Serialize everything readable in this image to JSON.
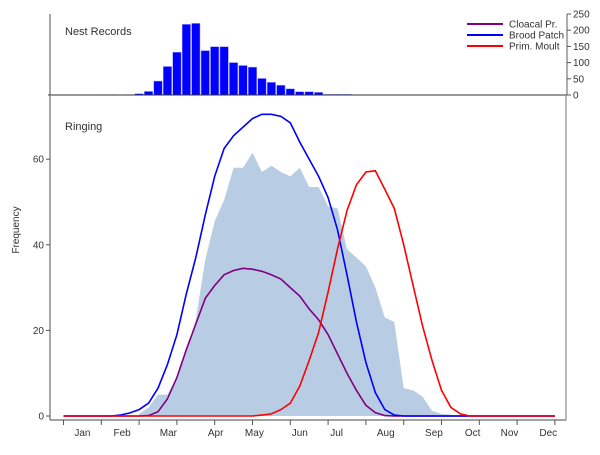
{
  "chart_data": [
    {
      "type": "bar",
      "panel_label": "Nest Records",
      "x_unit": "week of year",
      "x": [
        4,
        5,
        7,
        8,
        9,
        10,
        11,
        12,
        13,
        14,
        15,
        16,
        17,
        18,
        19,
        20,
        21,
        22,
        23,
        24,
        25,
        26,
        27,
        28,
        29,
        30
      ],
      "values": [
        1,
        1,
        1,
        4,
        11,
        43,
        88,
        132,
        218,
        221,
        137,
        149,
        149,
        100,
        91,
        86,
        51,
        39,
        30,
        19,
        10,
        10,
        8,
        2,
        2,
        2
      ],
      "ylim": [
        0,
        250
      ],
      "yticks": [
        0,
        50,
        100,
        150,
        200,
        250
      ],
      "y_axis_side": "right",
      "color": "#0000ff"
    },
    {
      "type": "area+line",
      "panel_label": "Ringing",
      "ylabel": "Frequency",
      "ylim": [
        0,
        75
      ],
      "yticks": [
        0,
        20,
        40,
        60
      ],
      "xlim": [
        -0.5,
        53
      ],
      "x_unit": "week of year",
      "xticks_weeks": [
        0,
        4,
        8,
        12,
        16,
        20,
        24,
        28,
        32,
        36,
        40,
        44,
        48,
        52
      ],
      "month_labels": [
        {
          "label": "Jan",
          "week": 2.0
        },
        {
          "label": "Feb",
          "week": 6.2
        },
        {
          "label": "Mar",
          "week": 11.1
        },
        {
          "label": "Apr",
          "week": 16.1
        },
        {
          "label": "May",
          "week": 20.2
        },
        {
          "label": "Jun",
          "week": 25.0
        },
        {
          "label": "Jul",
          "week": 28.9
        },
        {
          "label": "Aug",
          "week": 34.1
        },
        {
          "label": "Sep",
          "week": 39.2
        },
        {
          "label": "Oct",
          "week": 43.3
        },
        {
          "label": "Nov",
          "week": 47.2
        },
        {
          "label": "Dec",
          "week": 51.3
        }
      ],
      "area": {
        "color": "#b8cce4",
        "x": [
          8,
          9,
          10,
          11,
          12,
          13,
          14,
          15,
          16,
          17,
          18,
          19,
          20,
          21,
          22,
          23,
          24,
          25,
          26,
          27,
          28,
          29,
          30,
          31,
          32,
          33,
          34,
          35,
          36,
          37,
          38,
          39,
          40,
          41,
          42
        ],
        "values": [
          0.5,
          2,
          5,
          5,
          9,
          15,
          22.5,
          36.5,
          45.5,
          50.5,
          58,
          58,
          61.5,
          57,
          58.5,
          57,
          56,
          58,
          53.5,
          53.5,
          49,
          48.5,
          39,
          37,
          35,
          30,
          23,
          22,
          6.5,
          6,
          4.5,
          1.2,
          0.5,
          0.3,
          0
        ]
      },
      "legend_position": "top-right",
      "series": [
        {
          "name": "Cloacal Pr.",
          "color": "#800080",
          "start_week": 0,
          "values": [
            0,
            0,
            0,
            0,
            0,
            0,
            0,
            0,
            0,
            0.1,
            1,
            4,
            9,
            15.5,
            21.5,
            27.5,
            30.5,
            33,
            34,
            34.5,
            34.3,
            33.8,
            33,
            32,
            30,
            28,
            25,
            22.5,
            19,
            14.5,
            10,
            6,
            2.5,
            0.8,
            0.1,
            0,
            0,
            0,
            0,
            0,
            0,
            0,
            0,
            0,
            0,
            0,
            0,
            0,
            0,
            0,
            0,
            0,
            0
          ]
        },
        {
          "name": "Brood Patch",
          "color": "#0000ff",
          "start_week": 0,
          "values": [
            0,
            0,
            0,
            0,
            0,
            0,
            0.2,
            0.7,
            1.5,
            3,
            6.5,
            12,
            19,
            28.5,
            37,
            47,
            56,
            62.5,
            65.5,
            67.5,
            69.5,
            70.5,
            70.5,
            70,
            68.5,
            64,
            60,
            56,
            51,
            43.5,
            33,
            22,
            12.5,
            5.5,
            1.5,
            0.2,
            0,
            0,
            0,
            0,
            0,
            0,
            0,
            0,
            0,
            0,
            0,
            0,
            0,
            0,
            0,
            0,
            0
          ]
        },
        {
          "name": "Prim. Moult",
          "color": "#ff0000",
          "start_week": 0,
          "values": [
            0,
            0,
            0,
            0,
            0,
            0,
            0,
            0,
            0,
            0,
            0,
            0,
            0,
            0,
            0,
            0,
            0,
            0,
            0,
            0,
            0,
            0.2,
            0.5,
            1.5,
            3,
            7,
            13,
            19.5,
            29,
            39,
            48,
            54,
            57,
            57.3,
            53,
            48.5,
            40,
            30.5,
            21,
            13,
            6,
            2,
            0.5,
            0,
            0,
            0,
            0,
            0,
            0,
            0,
            0,
            0,
            0
          ]
        }
      ]
    }
  ]
}
